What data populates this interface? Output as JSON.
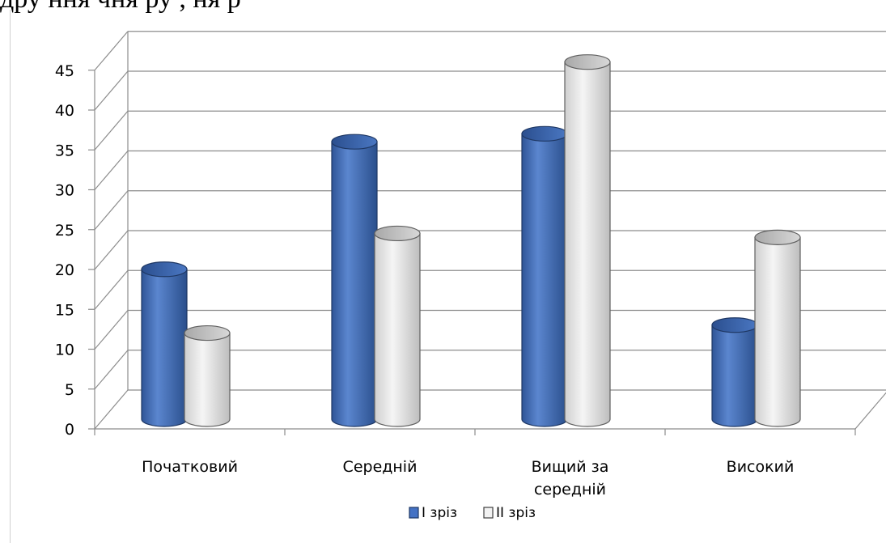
{
  "top_text": "дру  ння              чня                  ру  ,                             ня                         р",
  "chart_data": {
    "type": "bar",
    "categories": [
      "Початковий",
      "Середній",
      "Вищий за середній",
      "Високий"
    ],
    "category_lines": [
      [
        "Початковий"
      ],
      [
        "Середній"
      ],
      [
        "Вищий за",
        "середній"
      ],
      [
        "Високий"
      ]
    ],
    "series": [
      {
        "name": "I зріз",
        "values": [
          18.5,
          34.5,
          35.5,
          11.5
        ],
        "color": "#4472c4"
      },
      {
        "name": "II зріз",
        "values": [
          10.5,
          23,
          44.5,
          22.5
        ],
        "color": "#e6e6e6"
      }
    ],
    "yticks": [
      "0",
      "5",
      "10",
      "15",
      "20",
      "25",
      "30",
      "35",
      "40",
      "45"
    ],
    "ylim": [
      0,
      45
    ],
    "grid": true,
    "legend": "bottom"
  }
}
